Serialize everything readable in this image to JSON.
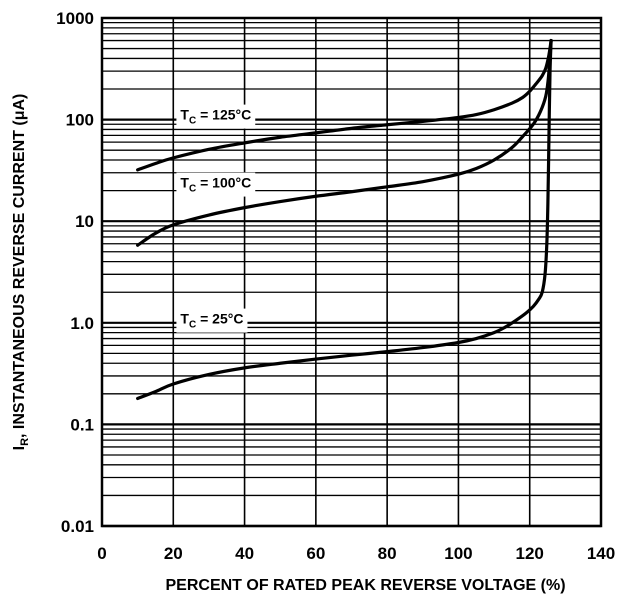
{
  "chart_data": {
    "type": "line",
    "title": "",
    "xlabel": "PERCENT OF RATED PEAK REVERSE VOLTAGE (%)",
    "ylabel_main": "INSTANTANEOUS REVERSE CURRENT (μA)",
    "ylabel_symbol": "I",
    "ylabel_subscript": "R",
    "ylabel_after_subscript": ",",
    "xlim": [
      0,
      140
    ],
    "ylim": [
      0.01,
      1000
    ],
    "yscale": "log",
    "grid": true,
    "x_ticks": [
      "0",
      "20",
      "40",
      "60",
      "80",
      "100",
      "120",
      "140"
    ],
    "x_tick_values": [
      0,
      20,
      40,
      60,
      80,
      100,
      120,
      140
    ],
    "y_ticks": [
      "0.01",
      "0.1",
      "1.0",
      "10",
      "100",
      "1000"
    ],
    "y_tick_values": [
      0.01,
      0.1,
      1,
      10,
      100,
      1000
    ],
    "series": [
      {
        "name": "T_C = 125°C",
        "label_main": "T",
        "label_sub": "C",
        "label_rest": " = 125°C",
        "label_at": [
          22,
          112
        ],
        "x": [
          10,
          15,
          20,
          30,
          40,
          50,
          60,
          70,
          80,
          90,
          100,
          105,
          110,
          115,
          118,
          120,
          122,
          123.5,
          124.5,
          125.2,
          125.6,
          126
        ],
        "y": [
          32,
          37,
          42,
          51,
          59,
          67,
          74,
          82,
          89,
          96,
          105,
          112,
          125,
          145,
          165,
          190,
          230,
          270,
          320,
          400,
          480,
          600
        ]
      },
      {
        "name": "T_C = 100°C",
        "label_main": "T",
        "label_sub": "C",
        "label_rest": " = 100°C",
        "label_at": [
          22,
          24
        ],
        "x": [
          10,
          15,
          20,
          30,
          40,
          50,
          60,
          70,
          80,
          90,
          100,
          105,
          110,
          115,
          118,
          121,
          123,
          124.5,
          125.2,
          125.6,
          126
        ],
        "y": [
          5.8,
          7.6,
          9.2,
          11.5,
          13.6,
          15.6,
          17.6,
          19.5,
          21.8,
          24.5,
          29,
          33,
          40,
          53,
          68,
          90,
          120,
          170,
          250,
          380,
          600
        ]
      },
      {
        "name": "T_C = 25°C",
        "label_main": "T",
        "label_sub": "C",
        "label_rest": " = 25°C",
        "label_at": [
          22,
          1.1
        ],
        "x": [
          10,
          15,
          20,
          30,
          40,
          50,
          60,
          70,
          80,
          90,
          100,
          105,
          110,
          113,
          116,
          119,
          121,
          122.5,
          123.5,
          124.3,
          124.8,
          125.1,
          125.3,
          125.5,
          125.7,
          126
        ],
        "y": [
          0.18,
          0.21,
          0.25,
          0.31,
          0.36,
          0.4,
          0.44,
          0.48,
          0.52,
          0.57,
          0.64,
          0.7,
          0.8,
          0.9,
          1.05,
          1.25,
          1.45,
          1.7,
          2.0,
          3.0,
          6.0,
          15,
          40,
          120,
          300,
          600
        ]
      }
    ]
  }
}
